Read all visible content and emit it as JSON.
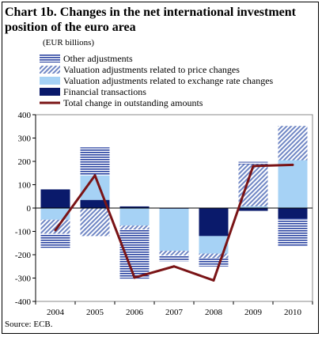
{
  "title": "Chart 1b. Changes in the net international investment position of the euro area",
  "units": "(EUR billions)",
  "source": "Source: ECB.",
  "chart_data": {
    "type": "bar",
    "stacked": true,
    "categories": [
      "2004",
      "2005",
      "2006",
      "2007",
      "2008",
      "2009",
      "2010"
    ],
    "ylim": [
      -400,
      400
    ],
    "yticks": [
      -400,
      -300,
      -200,
      -100,
      0,
      100,
      200,
      300,
      400
    ],
    "grid": false,
    "legend_position": "top",
    "series": [
      {
        "name": "Financial transactions",
        "kind": "bar",
        "color": "#0a1a6b",
        "values": [
          80,
          35,
          7,
          -3,
          -120,
          -12,
          -45
        ]
      },
      {
        "name": "Valuation adjustments related to exchange rate changes",
        "kind": "bar",
        "color": "#a6d2f5",
        "values": [
          -50,
          105,
          -75,
          -180,
          -75,
          8,
          205
        ]
      },
      {
        "name": "Valuation adjustments related to price changes",
        "kind": "bar",
        "color": "#6f86c4",
        "values": [
          -60,
          -120,
          -17,
          -20,
          -20,
          180,
          147
        ]
      },
      {
        "name": "Other adjustments",
        "kind": "bar",
        "color": "#1f3a9c",
        "values": [
          -60,
          120,
          -210,
          -25,
          -35,
          10,
          -120
        ]
      },
      {
        "name": "Total change in outstanding amounts",
        "kind": "line",
        "color": "#7a1416",
        "values": [
          -95,
          140,
          -298,
          -250,
          -310,
          180,
          185
        ]
      }
    ]
  }
}
